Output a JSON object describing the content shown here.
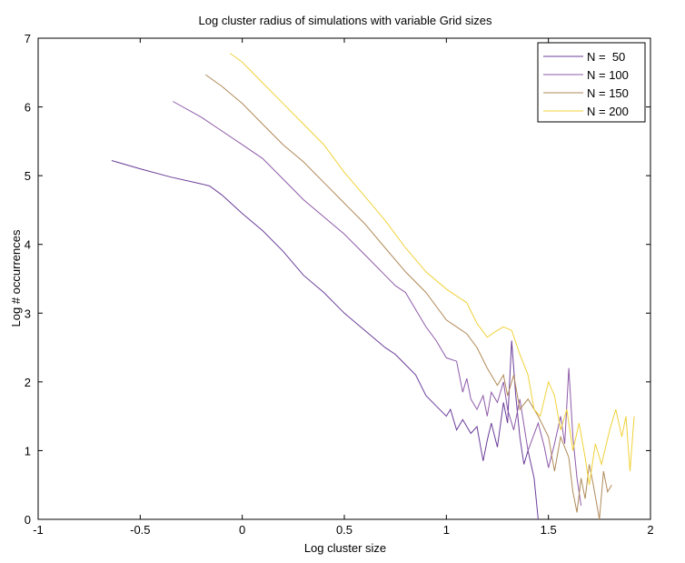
{
  "chart_data": {
    "type": "line",
    "title": "Log cluster radius of simulations with variable Grid sizes",
    "xlabel": "Log cluster size",
    "ylabel": "Log # occurrences",
    "xlim": [
      -1,
      2
    ],
    "ylim": [
      0,
      7
    ],
    "xticks": [
      -1,
      -0.5,
      0,
      0.5,
      1,
      1.5,
      2
    ],
    "xtick_labels": [
      "-1",
      "-0.5",
      "0",
      "0.5",
      "1",
      "1.5",
      "2"
    ],
    "yticks": [
      0,
      1,
      2,
      3,
      4,
      5,
      6,
      7
    ],
    "ytick_labels": [
      "0",
      "1",
      "2",
      "3",
      "4",
      "5",
      "6",
      "7"
    ],
    "grid": false,
    "legend_position": "top-right",
    "series": [
      {
        "name": "N =  50",
        "color": "#6a3d9a",
        "points": [
          [
            -0.64,
            5.22
          ],
          [
            -0.5,
            5.1
          ],
          [
            -0.35,
            4.98
          ],
          [
            -0.2,
            4.88
          ],
          [
            -0.16,
            4.85
          ],
          [
            -0.1,
            4.72
          ],
          [
            0.0,
            4.45
          ],
          [
            0.1,
            4.2
          ],
          [
            0.2,
            3.9
          ],
          [
            0.3,
            3.55
          ],
          [
            0.4,
            3.3
          ],
          [
            0.5,
            3.0
          ],
          [
            0.6,
            2.75
          ],
          [
            0.7,
            2.5
          ],
          [
            0.75,
            2.4
          ],
          [
            0.8,
            2.25
          ],
          [
            0.85,
            2.1
          ],
          [
            0.9,
            1.8
          ],
          [
            0.95,
            1.65
          ],
          [
            1.0,
            1.5
          ],
          [
            1.02,
            1.6
          ],
          [
            1.05,
            1.3
          ],
          [
            1.08,
            1.45
          ],
          [
            1.12,
            1.25
          ],
          [
            1.15,
            1.35
          ],
          [
            1.18,
            0.85
          ],
          [
            1.2,
            1.15
          ],
          [
            1.22,
            1.4
          ],
          [
            1.25,
            1.05
          ],
          [
            1.28,
            1.7
          ],
          [
            1.3,
            1.4
          ],
          [
            1.32,
            2.6
          ],
          [
            1.34,
            1.8
          ],
          [
            1.36,
            1.2
          ],
          [
            1.38,
            0.8
          ],
          [
            1.4,
            1.0
          ],
          [
            1.43,
            0.6
          ],
          [
            1.45,
            0.0
          ]
        ]
      },
      {
        "name": "N = 100",
        "color": "#8e5aa8",
        "points": [
          [
            -0.34,
            6.08
          ],
          [
            -0.2,
            5.85
          ],
          [
            -0.1,
            5.65
          ],
          [
            0.0,
            5.45
          ],
          [
            0.1,
            5.25
          ],
          [
            0.2,
            4.95
          ],
          [
            0.3,
            4.65
          ],
          [
            0.4,
            4.4
          ],
          [
            0.5,
            4.15
          ],
          [
            0.6,
            3.85
          ],
          [
            0.7,
            3.55
          ],
          [
            0.75,
            3.4
          ],
          [
            0.8,
            3.3
          ],
          [
            0.85,
            3.05
          ],
          [
            0.9,
            2.8
          ],
          [
            0.95,
            2.6
          ],
          [
            1.0,
            2.35
          ],
          [
            1.05,
            2.3
          ],
          [
            1.08,
            1.85
          ],
          [
            1.1,
            2.05
          ],
          [
            1.12,
            1.75
          ],
          [
            1.15,
            1.6
          ],
          [
            1.18,
            1.8
          ],
          [
            1.2,
            1.5
          ],
          [
            1.22,
            1.85
          ],
          [
            1.25,
            1.7
          ],
          [
            1.28,
            2.0
          ],
          [
            1.3,
            1.6
          ],
          [
            1.33,
            1.3
          ],
          [
            1.36,
            1.75
          ],
          [
            1.4,
            1.0
          ],
          [
            1.45,
            1.4
          ],
          [
            1.48,
            1.05
          ],
          [
            1.5,
            0.75
          ],
          [
            1.53,
            1.1
          ],
          [
            1.56,
            1.5
          ],
          [
            1.58,
            1.1
          ],
          [
            1.6,
            2.2
          ],
          [
            1.62,
            1.2
          ],
          [
            1.64,
            0.6
          ],
          [
            1.66,
            0.2
          ]
        ]
      },
      {
        "name": "N = 150",
        "color": "#b08a58",
        "points": [
          [
            -0.18,
            6.47
          ],
          [
            -0.1,
            6.3
          ],
          [
            0.0,
            6.05
          ],
          [
            0.1,
            5.75
          ],
          [
            0.2,
            5.45
          ],
          [
            0.3,
            5.2
          ],
          [
            0.4,
            4.9
          ],
          [
            0.5,
            4.6
          ],
          [
            0.6,
            4.3
          ],
          [
            0.7,
            3.95
          ],
          [
            0.8,
            3.6
          ],
          [
            0.9,
            3.3
          ],
          [
            1.0,
            2.9
          ],
          [
            1.1,
            2.7
          ],
          [
            1.15,
            2.5
          ],
          [
            1.2,
            2.2
          ],
          [
            1.25,
            1.95
          ],
          [
            1.28,
            2.1
          ],
          [
            1.3,
            1.8
          ],
          [
            1.33,
            2.1
          ],
          [
            1.36,
            1.6
          ],
          [
            1.4,
            1.75
          ],
          [
            1.45,
            1.5
          ],
          [
            1.5,
            1.2
          ],
          [
            1.53,
            0.7
          ],
          [
            1.56,
            1.2
          ],
          [
            1.6,
            0.9
          ],
          [
            1.62,
            0.4
          ],
          [
            1.64,
            0.1
          ],
          [
            1.66,
            0.6
          ],
          [
            1.68,
            0.3
          ],
          [
            1.7,
            0.8
          ],
          [
            1.72,
            0.5
          ],
          [
            1.75,
            0.0
          ],
          [
            1.77,
            0.7
          ],
          [
            1.79,
            0.4
          ],
          [
            1.81,
            0.5
          ]
        ]
      },
      {
        "name": "N = 200",
        "color": "#f0d23a",
        "points": [
          [
            -0.06,
            6.78
          ],
          [
            0.0,
            6.65
          ],
          [
            0.1,
            6.35
          ],
          [
            0.2,
            6.05
          ],
          [
            0.3,
            5.75
          ],
          [
            0.4,
            5.45
          ],
          [
            0.5,
            5.05
          ],
          [
            0.6,
            4.7
          ],
          [
            0.7,
            4.35
          ],
          [
            0.8,
            3.95
          ],
          [
            0.9,
            3.6
          ],
          [
            1.0,
            3.35
          ],
          [
            1.05,
            3.25
          ],
          [
            1.1,
            3.15
          ],
          [
            1.15,
            2.85
          ],
          [
            1.2,
            2.65
          ],
          [
            1.25,
            2.75
          ],
          [
            1.28,
            2.8
          ],
          [
            1.32,
            2.75
          ],
          [
            1.36,
            2.4
          ],
          [
            1.4,
            2.1
          ],
          [
            1.43,
            1.6
          ],
          [
            1.46,
            1.5
          ],
          [
            1.5,
            2.0
          ],
          [
            1.53,
            1.8
          ],
          [
            1.56,
            1.3
          ],
          [
            1.59,
            1.6
          ],
          [
            1.62,
            1.0
          ],
          [
            1.65,
            1.4
          ],
          [
            1.68,
            0.9
          ],
          [
            1.7,
            0.5
          ],
          [
            1.73,
            1.1
          ],
          [
            1.76,
            0.8
          ],
          [
            1.8,
            1.3
          ],
          [
            1.83,
            1.6
          ],
          [
            1.86,
            1.2
          ],
          [
            1.88,
            1.5
          ],
          [
            1.9,
            0.7
          ],
          [
            1.92,
            1.5
          ]
        ]
      }
    ]
  }
}
